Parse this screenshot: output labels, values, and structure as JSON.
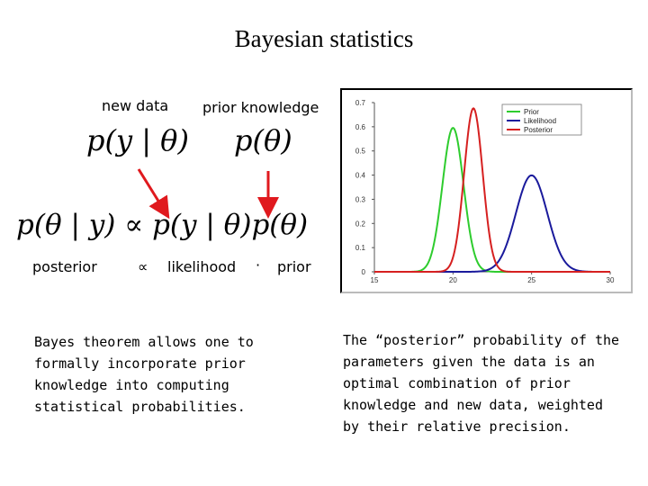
{
  "title": "Bayesian statistics",
  "labels": {
    "new_data": "new data",
    "prior_knowledge": "prior knowledge",
    "posterior": "posterior",
    "proportional": "∝",
    "likelihood": "likelihood",
    "dot": "·",
    "prior": "prior"
  },
  "equations": {
    "likelihood": "p(y | θ)",
    "prior": "p(θ)",
    "bayes_lhs": "p(θ | y) ∝ ",
    "bayes_likelihood": "p(y | θ)",
    "bayes_prior": "p(θ)"
  },
  "paragraphs": {
    "left": "Bayes theorem allows one to\nformally incorporate prior\nknowledge into computing\nstatistical probabilities.",
    "right": "The “posterior” probability of the\nparameters given the data is an\noptimal combination of prior\nknowledge and new data, weighted\nby their relative precision."
  },
  "colors": {
    "arrow": "#e0191e"
  },
  "chart_data": {
    "type": "line",
    "xlim": [
      15,
      30
    ],
    "ylim": [
      0,
      0.7
    ],
    "x_ticks": [
      15,
      20,
      25,
      30
    ],
    "y_ticks": [
      0,
      0.1,
      0.2,
      0.3,
      0.4,
      0.5,
      0.6,
      0.7
    ],
    "x_tick_labels": [
      "15",
      "20",
      "25",
      "30"
    ],
    "y_tick_labels": [
      "0",
      "0.1",
      "0.2",
      "0.3",
      "0.4",
      "0.5",
      "0.6",
      "0.7"
    ],
    "grid": false,
    "legend_position": "top-right",
    "series": [
      {
        "name": "Prior",
        "color": "#2ecc2e",
        "mean": 20.0,
        "sd": 0.67
      },
      {
        "name": "Likelihood",
        "color": "#1a1a9c",
        "mean": 25.0,
        "sd": 1.0
      },
      {
        "name": "Posterior",
        "color": "#d62020",
        "mean": 21.3,
        "sd": 0.59
      }
    ]
  }
}
